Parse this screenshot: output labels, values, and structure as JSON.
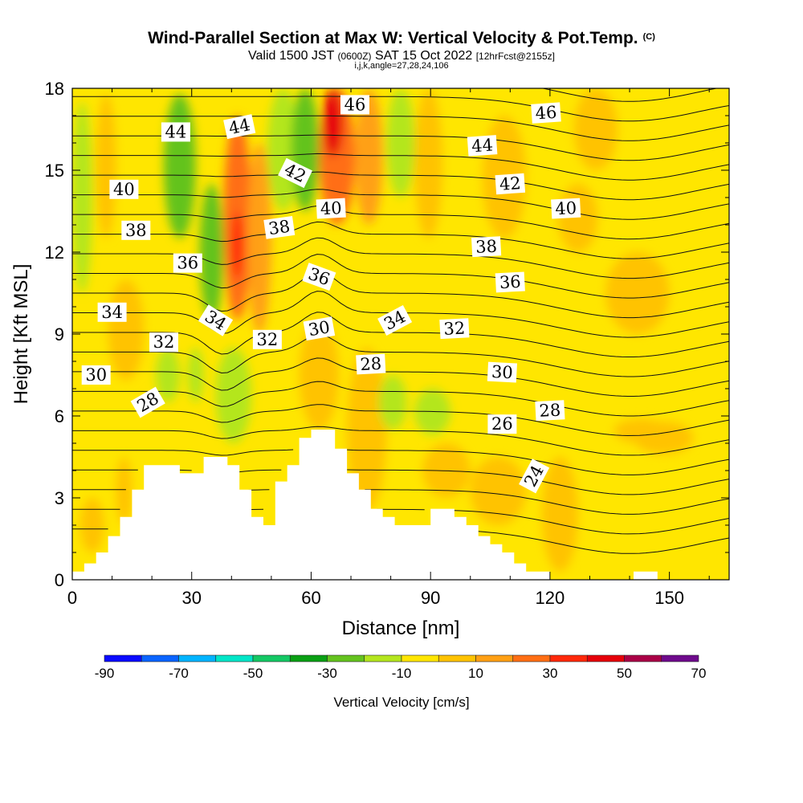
{
  "title": {
    "main": "Wind-Parallel Section at Max W: Vertical Velocity & Pot.Temp.",
    "main_suffix": "(C)",
    "valid_a": "Valid 1500 JST",
    "valid_utc": "(0600Z)",
    "valid_b": "SAT 15 Oct 2022",
    "fcst": "[12hrFcst@2155z]",
    "indices": "i,j,k,angle=27,28,24,106"
  },
  "chart_data": {
    "type": "heatmap",
    "xlabel": "Distance [nm]",
    "ylabel": "Height [Kft MSL]",
    "xlim": [
      0,
      165
    ],
    "ylim": [
      0,
      18
    ],
    "xticks": [
      0,
      30,
      60,
      90,
      120,
      150
    ],
    "yticks": [
      0,
      3,
      6,
      9,
      12,
      15,
      18
    ],
    "terrain": {
      "x": [
        0,
        3,
        6,
        9,
        12,
        15,
        18,
        21,
        24,
        27,
        30,
        33,
        36,
        39,
        42,
        45,
        48,
        51,
        54,
        57,
        60,
        63,
        66,
        69,
        72,
        75,
        78,
        81,
        84,
        87,
        90,
        93,
        96,
        99,
        102,
        105,
        108,
        111,
        114,
        117,
        120,
        123,
        126,
        129,
        132,
        135,
        138,
        141,
        144,
        147,
        150,
        153,
        156,
        159,
        162,
        165
      ],
      "height": [
        0.3,
        0.6,
        1.0,
        1.6,
        2.3,
        3.3,
        4.2,
        4.2,
        4.2,
        3.9,
        3.9,
        4.5,
        4.5,
        4.2,
        3.3,
        2.3,
        2.0,
        3.6,
        4.2,
        5.2,
        5.5,
        5.5,
        4.8,
        3.9,
        3.3,
        2.6,
        2.3,
        2.0,
        2.0,
        2.0,
        2.6,
        2.6,
        2.3,
        2.0,
        1.6,
        1.3,
        1.0,
        0.6,
        0.3,
        0.3,
        0,
        0,
        0,
        0,
        0,
        0,
        0,
        0.3,
        0.3,
        0,
        0,
        0,
        0,
        0,
        0,
        0
      ]
    },
    "vertical_velocity": {
      "units": "cm/s",
      "background_bin": [
        -10,
        0
      ],
      "regions": [
        {
          "kind": "rect",
          "x": [
            0,
            5
          ],
          "y": [
            10.5,
            17.5
          ],
          "value": -15
        },
        {
          "kind": "rect",
          "x": [
            6,
            11
          ],
          "y": [
            12.5,
            17.8
          ],
          "value": 5
        },
        {
          "kind": "rect",
          "x": [
            23,
            31
          ],
          "y": [
            12.5,
            17.8
          ],
          "value": -22
        },
        {
          "kind": "rect",
          "x": [
            32,
            38
          ],
          "y": [
            9.5,
            14.5
          ],
          "value": -28
        },
        {
          "kind": "rect",
          "x": [
            38,
            45
          ],
          "y": [
            9.5,
            17
          ],
          "value": 25
        },
        {
          "kind": "rect",
          "x": [
            40,
            43
          ],
          "y": [
            11,
            13.5
          ],
          "value": 35
        },
        {
          "kind": "rect",
          "x": [
            44,
            50
          ],
          "y": [
            9,
            16
          ],
          "value": 12
        },
        {
          "kind": "rect",
          "x": [
            49,
            57
          ],
          "y": [
            13.5,
            18
          ],
          "value": -15
        },
        {
          "kind": "rect",
          "x": [
            55,
            62
          ],
          "y": [
            13.5,
            18
          ],
          "value": -28
        },
        {
          "kind": "rect",
          "x": [
            62,
            71
          ],
          "y": [
            13,
            18
          ],
          "value": 22
        },
        {
          "kind": "rect",
          "x": [
            63,
            68
          ],
          "y": [
            15.5,
            18
          ],
          "value": 45
        },
        {
          "kind": "rect",
          "x": [
            71,
            78
          ],
          "y": [
            13,
            18
          ],
          "value": 12
        },
        {
          "kind": "rect",
          "x": [
            79,
            86
          ],
          "y": [
            14,
            18
          ],
          "value": -20
        },
        {
          "kind": "rect",
          "x": [
            86,
            93
          ],
          "y": [
            12.5,
            18
          ],
          "value": 5
        },
        {
          "kind": "rect",
          "x": [
            103,
            114
          ],
          "y": [
            12.5,
            17
          ],
          "value": 5
        },
        {
          "kind": "rect",
          "x": [
            126,
            137
          ],
          "y": [
            15,
            18
          ],
          "value": 5
        },
        {
          "kind": "rect",
          "x": [
            134,
            150
          ],
          "y": [
            9,
            12
          ],
          "value": 5
        },
        {
          "kind": "rect",
          "x": [
            122,
            132
          ],
          "y": [
            12,
            14.5
          ],
          "value": 5
        },
        {
          "kind": "rect",
          "x": [
            9,
            18
          ],
          "y": [
            7.3,
            11
          ],
          "value": 5
        },
        {
          "kind": "rect",
          "x": [
            21,
            27
          ],
          "y": [
            6.5,
            8.5
          ],
          "value": -20
        },
        {
          "kind": "rect",
          "x": [
            29,
            33
          ],
          "y": [
            6.5,
            8.5
          ],
          "value": -15
        },
        {
          "kind": "rect",
          "x": [
            36,
            45
          ],
          "y": [
            5,
            8.5
          ],
          "value": -15
        },
        {
          "kind": "rect",
          "x": [
            57,
            67
          ],
          "y": [
            5.5,
            9.5
          ],
          "value": 5
        },
        {
          "kind": "rect",
          "x": [
            69,
            79
          ],
          "y": [
            2.5,
            8.5
          ],
          "value": 5
        },
        {
          "kind": "rect",
          "x": [
            77,
            84
          ],
          "y": [
            5.5,
            7.5
          ],
          "value": -15
        },
        {
          "kind": "rect",
          "x": [
            86,
            95
          ],
          "y": [
            5.3,
            7
          ],
          "value": -15
        },
        {
          "kind": "rect",
          "x": [
            88,
            100
          ],
          "y": [
            3,
            5
          ],
          "value": 5
        },
        {
          "kind": "rect",
          "x": [
            100,
            114
          ],
          "y": [
            2,
            4.5
          ],
          "value": 5
        },
        {
          "kind": "rect",
          "x": [
            118,
            127
          ],
          "y": [
            0.3,
            4.5
          ],
          "value": 5
        },
        {
          "kind": "rect",
          "x": [
            136,
            150
          ],
          "y": [
            5,
            5.9
          ],
          "value": 5
        },
        {
          "kind": "rect",
          "x": [
            141,
            156
          ],
          "y": [
            4.6,
            5.8
          ],
          "value": 5
        },
        {
          "kind": "rect",
          "x": [
            11,
            15
          ],
          "y": [
            2,
            4.5
          ],
          "value": 5
        },
        {
          "kind": "rect",
          "x": [
            2,
            8
          ],
          "y": [
            1,
            3
          ],
          "value": 5
        }
      ]
    },
    "potential_temperature": {
      "units": "C",
      "contour_labels": [
        {
          "text": "46",
          "x": 71,
          "y": 17.4,
          "rot": 0
        },
        {
          "text": "46",
          "x": 119,
          "y": 17.1,
          "rot": -4
        },
        {
          "text": "44",
          "x": 26,
          "y": 16.4,
          "rot": 0
        },
        {
          "text": "44",
          "x": 42,
          "y": 16.6,
          "rot": -12
        },
        {
          "text": "44",
          "x": 103,
          "y": 15.9,
          "rot": -4
        },
        {
          "text": "42",
          "x": 56,
          "y": 14.9,
          "rot": 26
        },
        {
          "text": "42",
          "x": 110,
          "y": 14.5,
          "rot": -4
        },
        {
          "text": "40",
          "x": 13,
          "y": 14.3,
          "rot": 0
        },
        {
          "text": "40",
          "x": 65,
          "y": 13.6,
          "rot": -3
        },
        {
          "text": "40",
          "x": 124,
          "y": 13.6,
          "rot": -3
        },
        {
          "text": "38",
          "x": 16,
          "y": 12.8,
          "rot": 0
        },
        {
          "text": "38",
          "x": 52,
          "y": 12.9,
          "rot": -8
        },
        {
          "text": "38",
          "x": 104,
          "y": 12.2,
          "rot": -3
        },
        {
          "text": "36",
          "x": 29,
          "y": 11.6,
          "rot": 0
        },
        {
          "text": "36",
          "x": 62,
          "y": 11.1,
          "rot": 20
        },
        {
          "text": "36",
          "x": 110,
          "y": 10.9,
          "rot": -3
        },
        {
          "text": "34",
          "x": 10,
          "y": 9.8,
          "rot": 0
        },
        {
          "text": "34",
          "x": 36,
          "y": 9.5,
          "rot": 32
        },
        {
          "text": "34",
          "x": 81,
          "y": 9.5,
          "rot": -28
        },
        {
          "text": "32",
          "x": 23,
          "y": 8.7,
          "rot": 0
        },
        {
          "text": "32",
          "x": 49,
          "y": 8.8,
          "rot": 0
        },
        {
          "text": "32",
          "x": 96,
          "y": 9.2,
          "rot": -3
        },
        {
          "text": "30",
          "x": 6,
          "y": 7.5,
          "rot": 0
        },
        {
          "text": "30",
          "x": 62,
          "y": 9.2,
          "rot": -10
        },
        {
          "text": "30",
          "x": 108,
          "y": 7.6,
          "rot": 3
        },
        {
          "text": "28",
          "x": 19,
          "y": 6.5,
          "rot": -30
        },
        {
          "text": "28",
          "x": 75,
          "y": 7.9,
          "rot": -3
        },
        {
          "text": "28",
          "x": 120,
          "y": 6.2,
          "rot": -3
        },
        {
          "text": "26",
          "x": 108,
          "y": 5.7,
          "rot": 0
        },
        {
          "text": "24",
          "x": 116,
          "y": 3.8,
          "rot": -62
        }
      ]
    },
    "colorbar": {
      "label": "Vertical Velocity [cm/s]",
      "tick_labels": [
        "-90",
        "-70",
        "-50",
        "-30",
        "-10",
        "10",
        "30",
        "50",
        "70"
      ],
      "bins": [
        {
          "from": -90,
          "to": -80,
          "color": "#0a0aff"
        },
        {
          "from": -80,
          "to": -70,
          "color": "#0a64ff"
        },
        {
          "from": -70,
          "to": -60,
          "color": "#00b4ff"
        },
        {
          "from": -60,
          "to": -50,
          "color": "#00e6c8"
        },
        {
          "from": -50,
          "to": -40,
          "color": "#14c864"
        },
        {
          "from": -40,
          "to": -30,
          "color": "#0aa014"
        },
        {
          "from": -30,
          "to": -20,
          "color": "#64c31e"
        },
        {
          "from": -20,
          "to": -10,
          "color": "#b4e61e"
        },
        {
          "from": -10,
          "to": 0,
          "color": "#ffe600"
        },
        {
          "from": 0,
          "to": 10,
          "color": "#ffc300"
        },
        {
          "from": 10,
          "to": 20,
          "color": "#ffa014"
        },
        {
          "from": 20,
          "to": 30,
          "color": "#ff6e14"
        },
        {
          "from": 30,
          "to": 40,
          "color": "#ff280a"
        },
        {
          "from": 40,
          "to": 50,
          "color": "#e6000a"
        },
        {
          "from": 50,
          "to": 60,
          "color": "#aa0046"
        },
        {
          "from": 60,
          "to": 70,
          "color": "#6e0a8c"
        }
      ]
    }
  }
}
